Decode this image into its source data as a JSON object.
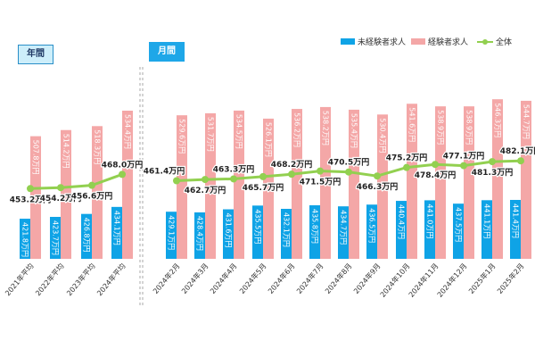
{
  "chart_data": {
    "type": "bar",
    "panels": [
      {
        "label": "年間",
        "categories": [
          "2021年平均",
          "2022年平均",
          "2023年平均",
          "2024年平均"
        ]
      },
      {
        "label": "月間",
        "categories": [
          "2024年2月",
          "2024年3月",
          "2024年4月",
          "2024年5月",
          "2024年6月",
          "2024年7月",
          "2024年8月",
          "2024年9月",
          "2024年10月",
          "2024年11月",
          "2024年12月",
          "2025年1月",
          "2025年2月"
        ]
      }
    ],
    "categories": [
      "2021年平均",
      "2022年平均",
      "2023年平均",
      "2024年平均",
      "2024年2月",
      "2024年3月",
      "2024年4月",
      "2024年5月",
      "2024年6月",
      "2024年7月",
      "2024年8月",
      "2024年9月",
      "2024年10月",
      "2024年11月",
      "2024年12月",
      "2025年1月",
      "2025年2月"
    ],
    "series": [
      {
        "name": "未経験者求人",
        "type": "bar",
        "color": "#0fa3e6",
        "values": [
          421.8,
          423.7,
          426.8,
          434.1,
          429.1,
          428.4,
          431.6,
          435.5,
          432.1,
          435.8,
          434.7,
          436.5,
          440.4,
          441.0,
          437.5,
          441.1,
          441.4
        ],
        "labels": [
          "421.8万円",
          "423.7万円",
          "426.8万円",
          "434.1万円",
          "429.1万円",
          "428.4万円",
          "431.6万円",
          "435.5万円",
          "432.1万円",
          "435.8万円",
          "434.7万円",
          "436.5万円",
          "440.4万円",
          "441.0万円",
          "437.5万円",
          "441.1万円",
          "441.4万円"
        ]
      },
      {
        "name": "経験者求人",
        "type": "bar",
        "color": "#f4a7a7",
        "values": [
          507.8,
          514.2,
          518.3,
          534.4,
          529.6,
          531.7,
          534.5,
          526.1,
          536.2,
          538.2,
          535.4,
          530.4,
          541.6,
          538.9,
          538.9,
          546.3,
          544.7
        ],
        "labels": [
          "507.8万円",
          "514.2万円",
          "518.3万円",
          "534.4万円",
          "529.6万円",
          "531.7万円",
          "534.5万円",
          "526.1万円",
          "536.2万円",
          "538.2万円",
          "535.4万円",
          "530.4万円",
          "541.6万円",
          "538.9万円",
          "538.9万円",
          "546.3万円",
          "544.7万円"
        ]
      },
      {
        "name": "全体",
        "type": "line",
        "color": "#92d050",
        "values": [
          453.2,
          454.2,
          456.6,
          468.0,
          461.4,
          462.7,
          463.3,
          465.7,
          468.2,
          471.5,
          470.5,
          466.3,
          475.2,
          478.4,
          477.1,
          481.3,
          482.1
        ],
        "labels": [
          "453.2万円",
          "454.2万円",
          "456.6万円",
          "468.0万円",
          "461.4万円",
          "462.7万円",
          "463.3万円",
          "465.7万円",
          "468.2万円",
          "471.5万円",
          "470.5万円",
          "466.3万円",
          "475.2万円",
          "478.4万円",
          "477.1万円",
          "481.3万円",
          "482.1万円"
        ]
      }
    ],
    "ylim": [
      380,
      560
    ],
    "grid": false,
    "legend": "top-right"
  }
}
